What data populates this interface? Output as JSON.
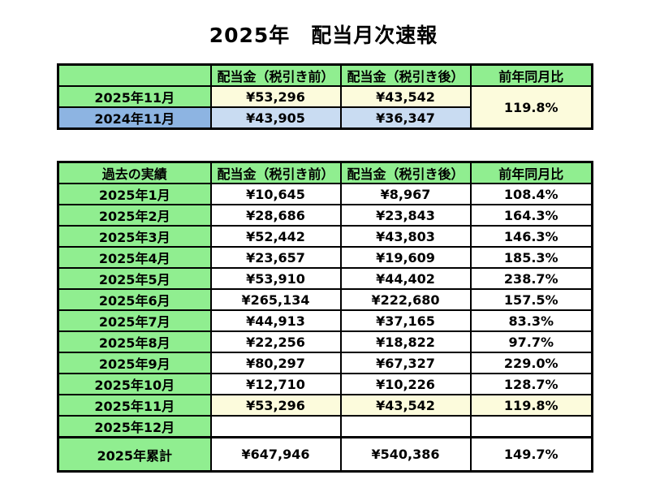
{
  "title": "2025年　配当月次速報",
  "colors": {
    "green": "#90EE90",
    "blue": "#8DB4E2",
    "light_blue": "#C9DCF2",
    "yellow": "#FCFBDC",
    "border": "#000000",
    "text": "#000000",
    "background": "#FFFFFF"
  },
  "chart_data": [
    {
      "type": "table",
      "name": "current-vs-previous-year-summary",
      "headers": [
        "",
        "配当金（税引き前）",
        "配当金（税引き後）",
        "前年同月比"
      ],
      "rows": [
        {
          "label": "2025年11月",
          "pre_tax": "¥53,296",
          "post_tax": "¥43,542"
        },
        {
          "label": "2024年11月",
          "pre_tax": "¥43,905",
          "post_tax": "¥36,347"
        }
      ],
      "yoy": "119.8%"
    },
    {
      "type": "table",
      "name": "monthly-history",
      "headers": [
        "過去の実績",
        "配当金（税引き前）",
        "配当金（税引き後）",
        "前年同月比"
      ],
      "rows": [
        [
          "2025年1月",
          "¥10,645",
          "¥8,967",
          "108.4%"
        ],
        [
          "2025年2月",
          "¥28,686",
          "¥23,843",
          "164.3%"
        ],
        [
          "2025年3月",
          "¥52,442",
          "¥43,803",
          "146.3%"
        ],
        [
          "2025年4月",
          "¥23,657",
          "¥19,609",
          "185.3%"
        ],
        [
          "2025年5月",
          "¥53,910",
          "¥44,402",
          "238.7%"
        ],
        [
          "2025年6月",
          "¥265,134",
          "¥222,680",
          "157.5%"
        ],
        [
          "2025年7月",
          "¥44,913",
          "¥37,165",
          "83.3%"
        ],
        [
          "2025年8月",
          "¥22,256",
          "¥18,822",
          "97.7%"
        ],
        [
          "2025年9月",
          "¥80,297",
          "¥67,327",
          "229.0%"
        ],
        [
          "2025年10月",
          "¥12,710",
          "¥10,226",
          "128.7%"
        ],
        [
          "2025年11月",
          "¥53,296",
          "¥43,542",
          "119.8%"
        ],
        [
          "2025年12月",
          "",
          "",
          ""
        ]
      ],
      "total": [
        "2025年累計",
        "¥647,946",
        "¥540,386",
        "149.7%"
      ]
    }
  ]
}
